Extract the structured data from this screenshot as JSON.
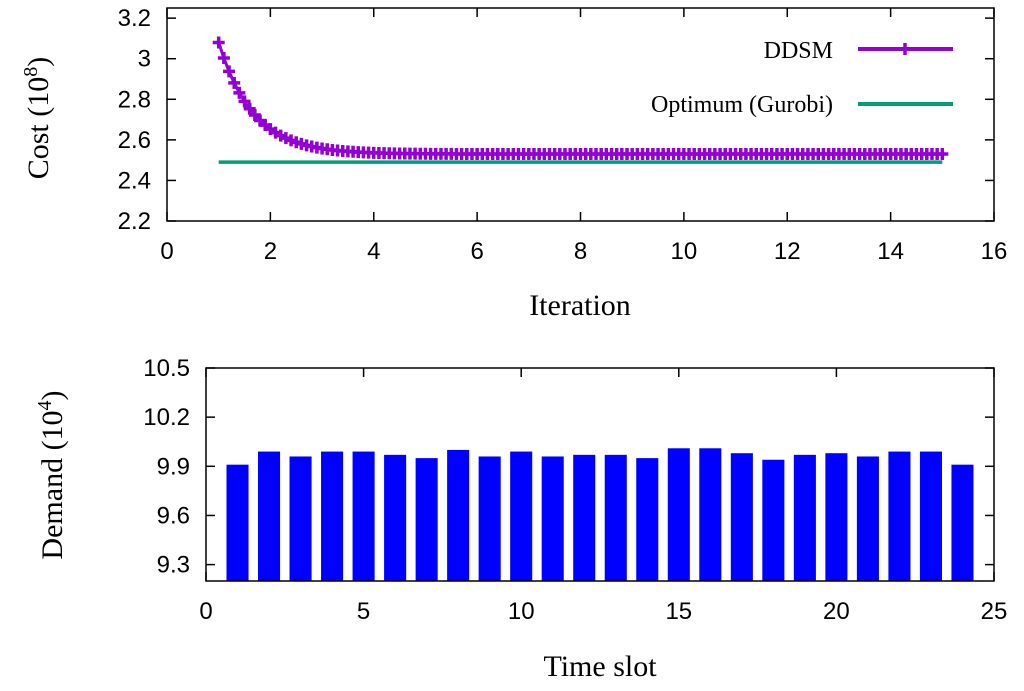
{
  "chart_data": [
    {
      "type": "line",
      "xlabel": "Iteration",
      "ylabel": "Cost (10",
      "ylabel_exponent": "8",
      "ylabel_close": ")",
      "xlim": [
        0,
        16
      ],
      "ylim": [
        2.2,
        3.25
      ],
      "xticks": [
        0,
        2,
        4,
        6,
        8,
        10,
        12,
        14,
        16
      ],
      "xtick_labels": [
        "0",
        "2",
        "4",
        "6",
        "8",
        "10",
        "12",
        "14",
        "16"
      ],
      "yticks": [
        2.2,
        2.4,
        2.6,
        2.8,
        3.0,
        3.2
      ],
      "ytick_labels": [
        "2.2",
        "2.4",
        "2.6",
        "2.8",
        "3",
        "3.2"
      ],
      "legend_position": "top-right",
      "series": [
        {
          "name": "DDSM",
          "color": "#9400D3",
          "marker": "plus",
          "x_start": 1.0,
          "x_end": 15.0,
          "x_step": 0.1,
          "initial": 3.08,
          "asymptote": 2.53,
          "decay_rate": 1.5
        },
        {
          "name": "Optimum (Gurobi)",
          "color": "#009E73",
          "marker": "none",
          "x": [
            1.0,
            15.0
          ],
          "y": [
            2.49,
            2.49
          ]
        }
      ]
    },
    {
      "type": "bar",
      "xlabel": "Time slot",
      "ylabel": "Demand (10",
      "ylabel_exponent": "4",
      "ylabel_close": ")",
      "xlim": [
        0,
        25
      ],
      "ylim": [
        9.2,
        10.5
      ],
      "xticks": [
        0,
        5,
        10,
        15,
        20,
        25
      ],
      "xtick_labels": [
        "0",
        "5",
        "10",
        "15",
        "20",
        "25"
      ],
      "yticks": [
        9.3,
        9.6,
        9.9,
        10.2,
        10.5
      ],
      "ytick_labels": [
        "9.3",
        "9.6",
        "9.9",
        "10.2",
        "10.5"
      ],
      "bar_color": "#0000FF",
      "categories": [
        1,
        2,
        3,
        4,
        5,
        6,
        7,
        8,
        9,
        10,
        11,
        12,
        13,
        14,
        15,
        16,
        17,
        18,
        19,
        20,
        21,
        22,
        23,
        24
      ],
      "values": [
        9.91,
        9.99,
        9.96,
        9.99,
        9.99,
        9.97,
        9.95,
        10.0,
        9.96,
        9.99,
        9.96,
        9.97,
        9.97,
        9.95,
        10.01,
        10.01,
        9.98,
        9.94,
        9.97,
        9.98,
        9.96,
        9.99,
        9.99,
        9.91
      ]
    }
  ]
}
